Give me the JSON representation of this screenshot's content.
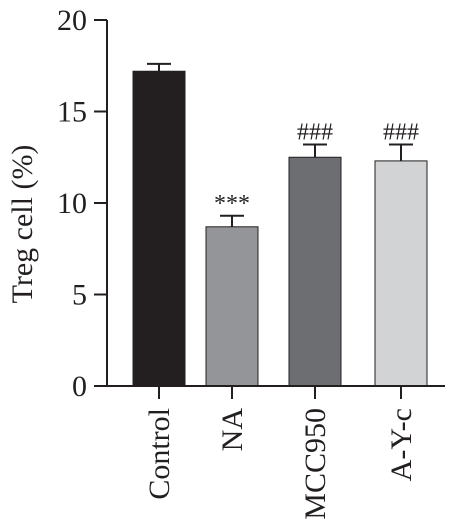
{
  "chart_data": {
    "type": "bar",
    "title": "",
    "xlabel": "",
    "ylabel": "Treg cell (%)",
    "categories": [
      "Control",
      "NA",
      "MCC950",
      "A-Y-c"
    ],
    "values": [
      17.2,
      8.7,
      12.5,
      12.3
    ],
    "errors": [
      0.4,
      0.6,
      0.7,
      0.9
    ],
    "significance": [
      "",
      "***",
      "###",
      "###"
    ],
    "colors": [
      "#231f20",
      "#939598",
      "#6d6e71",
      "#d1d3d4"
    ],
    "ylim": [
      0,
      20
    ],
    "yticks": [
      0,
      5,
      10,
      15,
      20
    ],
    "grid": false,
    "legend": "none"
  }
}
